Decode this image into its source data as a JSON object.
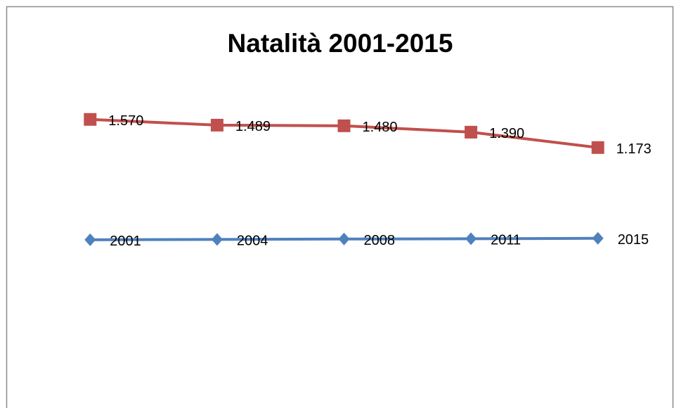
{
  "chart_data": {
    "type": "line",
    "title": "Natalità 2001-2015",
    "categories": [
      null,
      null,
      null,
      null,
      null
    ],
    "series": [
      {
        "color": "#c0504d",
        "marker": "square",
        "values": [
          1570,
          1489,
          1480,
          1390,
          1173
        ],
        "value_labels": [
          "1.570",
          "1.489",
          "1.480",
          "1.390",
          "1.173"
        ]
      },
      {
        "color": "#4f81bd",
        "marker": "diamond",
        "axis": "y2",
        "values": [
          2001,
          2004,
          2008,
          2011,
          2015
        ]
      }
    ],
    "ylim": [
      -2500,
      2500
    ],
    "y2lim": [
      340,
      3840
    ]
  }
}
